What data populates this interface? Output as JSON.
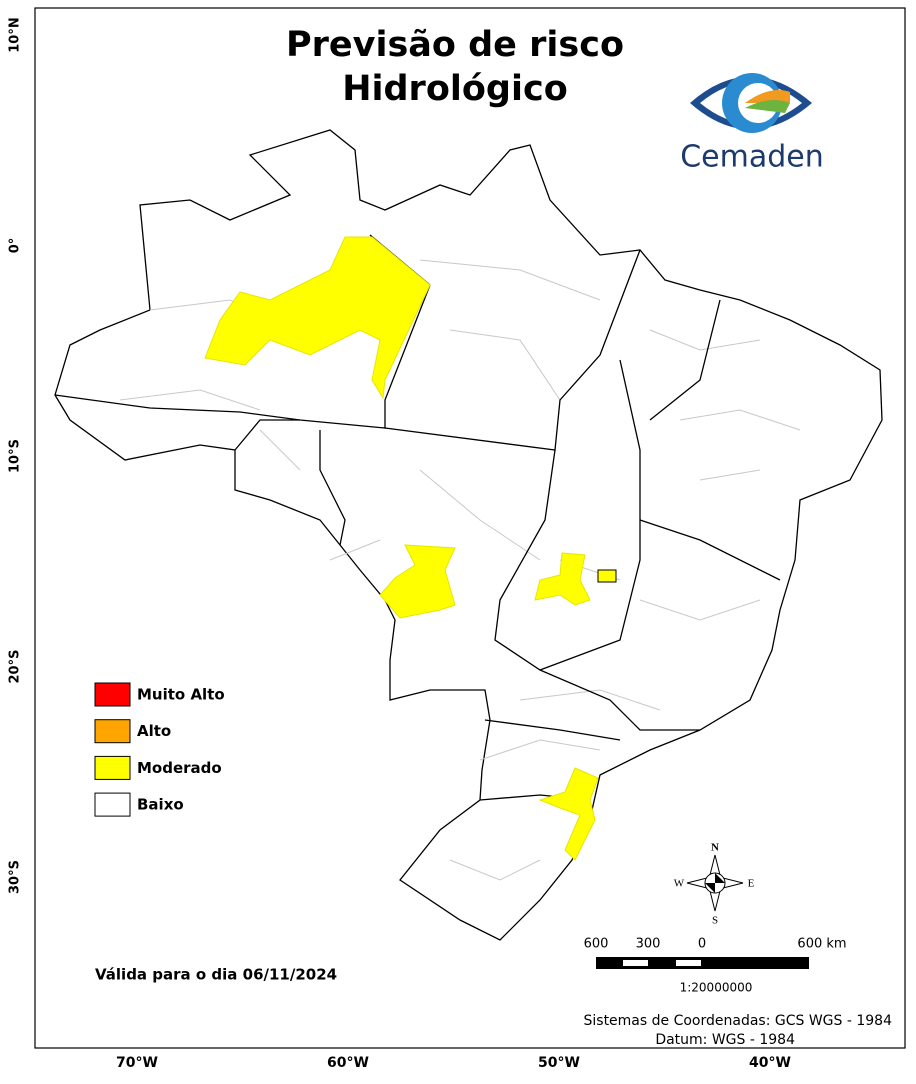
{
  "title": [
    "Previsão de risco",
    "Hidrológico"
  ],
  "logo": {
    "text": "Cemaden"
  },
  "legend": {
    "items": [
      {
        "label": "Muito Alto",
        "color": "#ff0000"
      },
      {
        "label": "Alto",
        "color": "#ffa500"
      },
      {
        "label": "Moderado",
        "color": "#ffff00"
      },
      {
        "label": "Baixo",
        "color": "#ffffff"
      }
    ]
  },
  "valid_date": "Válida para o dia 06/11/2024",
  "axes": {
    "y_labels": [
      "10°N",
      "0°",
      "10°S",
      "20°S",
      "30°S"
    ],
    "x_labels": [
      "70°W",
      "60°W",
      "50°W",
      "40°W"
    ]
  },
  "compass": {
    "north": "N",
    "south": "S",
    "west": "W",
    "east": "E"
  },
  "scale_bar": {
    "labels": [
      "600",
      "300",
      "0",
      "600 km"
    ],
    "ratio": "1:20000000"
  },
  "footer": [
    "Sistemas de Coordenadas: GCS WGS - 1984",
    "Datum: WGS - 1984"
  ]
}
